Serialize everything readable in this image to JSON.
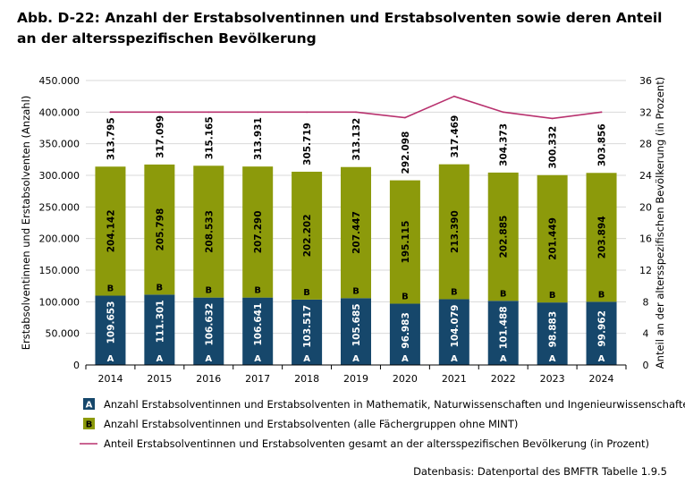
{
  "title_line1": "Abb. D-22: Anzahl der Erstabsolventinnen und Erstabsolventen sowie deren Anteil",
  "title_line2": "an der altersspezifischen Bevölkerung",
  "source": "Datenbasis: Datenportal des BMFTR Tabelle 1.9.5",
  "colors": {
    "mint": "#16476b",
    "other": "#8c9a0b",
    "line": "#b8316e",
    "grid": "#d9d9d9"
  },
  "chart_data": {
    "type": "bar",
    "stacked": true,
    "categories": [
      "2014",
      "2015",
      "2016",
      "2017",
      "2018",
      "2019",
      "2020",
      "2021",
      "2022",
      "2023",
      "2024"
    ],
    "series": [
      {
        "marker": "A",
        "name": "Anzahl Erstabsolventinnen und Erstabsolventen in Mathematik, Naturwissenschaften und Ingenieurwissenschaften (MINT)",
        "values": [
          109653,
          111301,
          106632,
          106641,
          103517,
          105685,
          96983,
          104079,
          101488,
          98883,
          99962
        ],
        "labels": [
          "109.653",
          "111.301",
          "106.632",
          "106.641",
          "103.517",
          "105.685",
          "96.983",
          "104.079",
          "101.488",
          "98.883",
          "99.962"
        ]
      },
      {
        "marker": "B",
        "name": "Anzahl Erstabsolventinnen und Erstabsolventen (alle Fächergruppen ohne MINT)",
        "values": [
          204142,
          205798,
          208533,
          207290,
          202202,
          207447,
          195115,
          213390,
          202885,
          201449,
          203894
        ],
        "labels": [
          "204.142",
          "205.798",
          "208.533",
          "207.290",
          "202.202",
          "207.447",
          "195.115",
          "213.390",
          "202.885",
          "201.449",
          "203.894"
        ]
      }
    ],
    "totals": {
      "values": [
        313795,
        317099,
        315165,
        313931,
        305719,
        313132,
        292098,
        317469,
        304373,
        300332,
        303856
      ],
      "labels": [
        "313.795",
        "317.099",
        "315.165",
        "313.931",
        "305.719",
        "313.132",
        "292.098",
        "317.469",
        "304.373",
        "300.332",
        "303.856"
      ]
    },
    "line": {
      "name": "Anteil Erstabsolventinnen und Erstabsolventen gesamt an der altersspezifischen Bevölkerung (in Prozent)",
      "axis": "right",
      "values": [
        32,
        32,
        32,
        32,
        32,
        32,
        31.3,
        34,
        32,
        31.2,
        32
      ]
    },
    "ylabel": "Erstabsolventinnen und Erstabsolventen (Anzahl)",
    "ylabel_right": "Anteil an der altersspezifischen Bevölkerung (in Prozent)",
    "ylim": [
      0,
      450000
    ],
    "yticks": [
      0,
      50000,
      100000,
      150000,
      200000,
      250000,
      300000,
      350000,
      400000,
      450000
    ],
    "ytick_labels": [
      "0",
      "50.000",
      "100.000",
      "150.000",
      "200.000",
      "250.000",
      "300.000",
      "350.000",
      "400.000",
      "450.000"
    ],
    "ylim_right": [
      0,
      36
    ],
    "yticks_right": [
      0,
      4,
      8,
      12,
      16,
      20,
      24,
      28,
      32,
      36
    ],
    "ytick_labels_right": [
      "0",
      "4",
      "8",
      "12",
      "16",
      "20",
      "24",
      "28",
      "32",
      "36"
    ],
    "grid": true,
    "legend": "bottom"
  }
}
